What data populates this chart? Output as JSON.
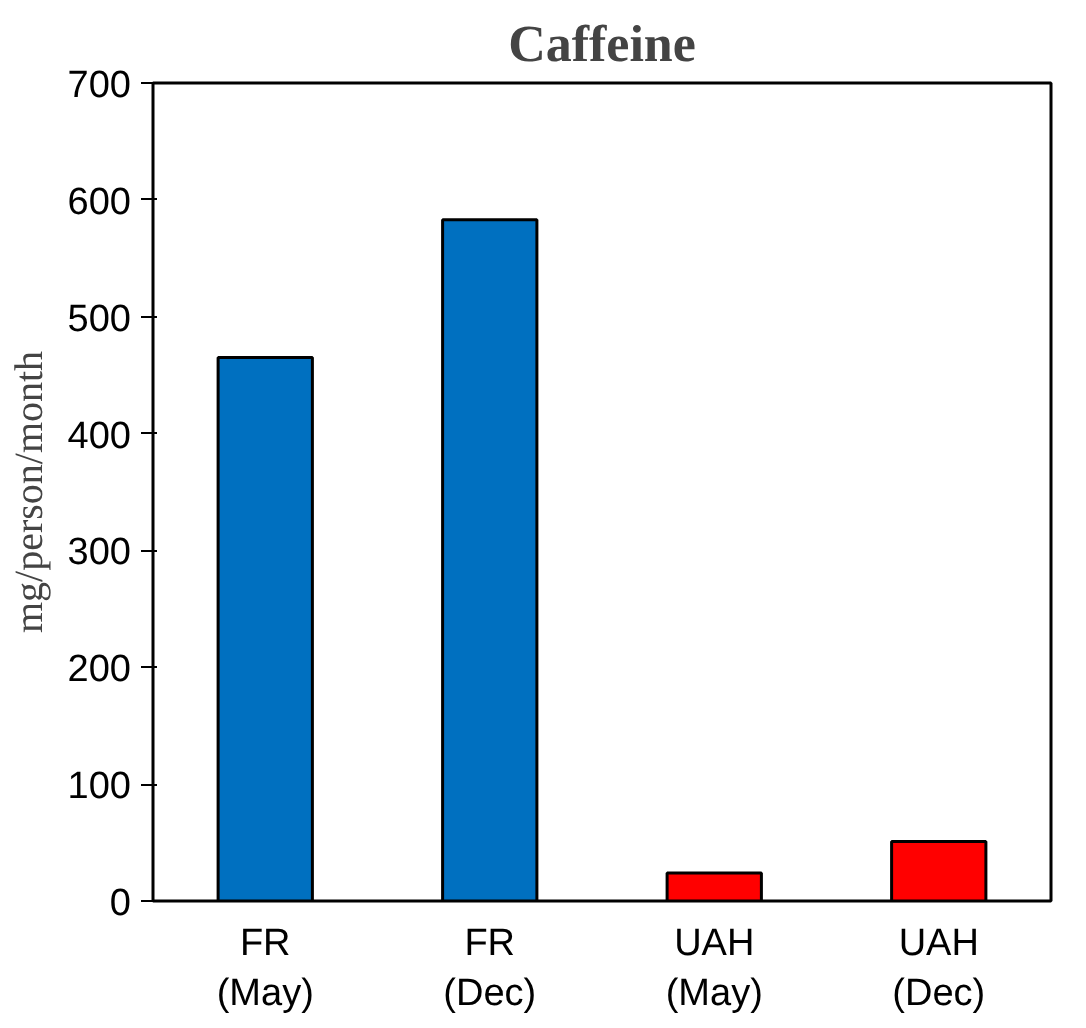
{
  "chart_data": {
    "type": "bar",
    "title": "Caffeine",
    "ylabel": "mg/person/month",
    "categories": [
      "FR\n(May)",
      "FR\n(Dec)",
      "UAH\n(May)",
      "UAH\n(Dec)"
    ],
    "values": [
      465,
      583,
      24,
      51
    ],
    "colors": [
      "#0070c0",
      "#0070c0",
      "#ff0000",
      "#ff0000"
    ],
    "ylim": [
      0,
      700
    ],
    "yticks": [
      0,
      100,
      200,
      300,
      400,
      500,
      600,
      700
    ],
    "grid": false
  }
}
